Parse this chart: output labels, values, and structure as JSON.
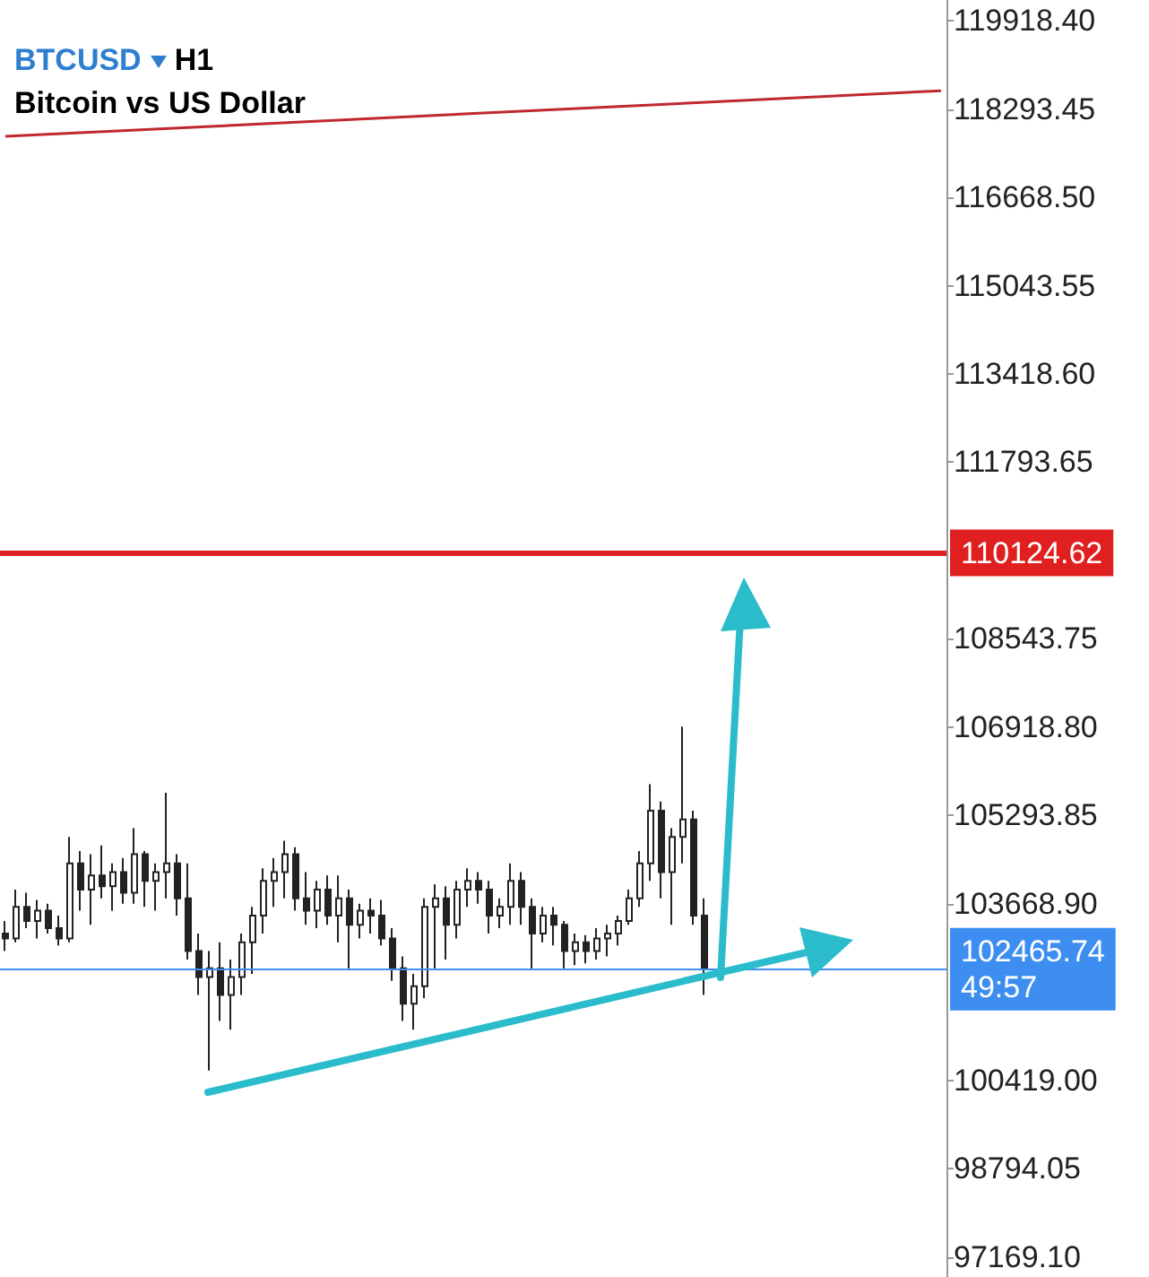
{
  "chart_data": {
    "type": "candlestick",
    "title": "BTCUSD",
    "subtitle": "Bitcoin vs US Dollar",
    "annotations": [
      "H1"
    ],
    "categories": [
      null,
      null,
      null,
      null,
      null,
      null,
      null,
      null,
      null,
      null,
      null,
      null,
      null,
      null,
      null,
      null,
      null,
      null,
      null,
      null,
      null,
      null,
      null,
      null,
      null,
      null,
      null,
      null,
      null,
      null,
      null,
      null,
      null,
      null,
      null,
      null,
      null,
      null,
      null,
      null,
      null,
      null,
      null,
      null,
      null,
      null,
      null,
      null,
      null,
      null,
      null,
      null,
      null,
      null,
      null,
      null,
      null,
      null,
      null,
      null,
      null,
      null,
      null,
      null,
      null,
      null,
      null,
      null,
      null,
      null,
      null,
      null,
      null,
      null,
      null,
      null,
      null,
      null,
      null,
      null,
      null,
      null,
      null,
      null,
      null,
      null,
      null,
      null
    ],
    "color": "#222222",
    "ohlc": [
      [
        103120,
        103350,
        102800,
        103030
      ],
      [
        103030,
        103930,
        102960,
        103610
      ],
      [
        103610,
        103870,
        103220,
        103350
      ],
      [
        103350,
        103740,
        103030,
        103540
      ],
      [
        103540,
        103670,
        103120,
        103220
      ],
      [
        103220,
        103450,
        102900,
        103030
      ],
      [
        103030,
        104900,
        102960,
        104410
      ],
      [
        104410,
        104640,
        103540,
        103930
      ],
      [
        103930,
        104580,
        103280,
        104190
      ],
      [
        104190,
        104740,
        103770,
        103990
      ],
      [
        103990,
        104410,
        103540,
        104250
      ],
      [
        104250,
        104510,
        103670,
        103870
      ],
      [
        103870,
        105060,
        103670,
        104580
      ],
      [
        104580,
        104640,
        103610,
        104090
      ],
      [
        104090,
        104410,
        103540,
        104250
      ],
      [
        104250,
        105710,
        103770,
        104410
      ],
      [
        104410,
        104580,
        103450,
        103770
      ],
      [
        103770,
        104410,
        102640,
        102800
      ],
      [
        102800,
        103120,
        101990,
        102320
      ],
      [
        102320,
        102800,
        100600,
        102480
      ],
      [
        102480,
        102960,
        101510,
        101990
      ],
      [
        101990,
        102640,
        101350,
        102320
      ],
      [
        102320,
        103120,
        101990,
        102960
      ],
      [
        102960,
        103610,
        102380,
        103450
      ],
      [
        103450,
        104320,
        103120,
        104090
      ],
      [
        104090,
        104510,
        103610,
        104250
      ],
      [
        104250,
        104830,
        103770,
        104580
      ],
      [
        104580,
        104710,
        103540,
        103770
      ],
      [
        103770,
        104250,
        103280,
        103540
      ],
      [
        103540,
        104090,
        103220,
        103930
      ],
      [
        103930,
        104190,
        103280,
        103450
      ],
      [
        103450,
        104190,
        102960,
        103770
      ],
      [
        103770,
        103930,
        102480,
        103280
      ],
      [
        103280,
        103670,
        103030,
        103540
      ],
      [
        103540,
        103770,
        103120,
        103450
      ],
      [
        103450,
        103740,
        102900,
        103030
      ],
      [
        103030,
        103220,
        102250,
        102480
      ],
      [
        102480,
        102700,
        101510,
        101830
      ],
      [
        101830,
        102380,
        101350,
        102150
      ],
      [
        102150,
        103770,
        101930,
        103610
      ],
      [
        103610,
        104030,
        102480,
        103770
      ],
      [
        103770,
        103990,
        102640,
        103280
      ],
      [
        103280,
        104090,
        103030,
        103930
      ],
      [
        103930,
        104320,
        103610,
        104090
      ],
      [
        104090,
        104250,
        103670,
        103930
      ],
      [
        103930,
        104090,
        103120,
        103450
      ],
      [
        103450,
        103770,
        103220,
        103610
      ],
      [
        103610,
        104410,
        103280,
        104090
      ],
      [
        104090,
        104250,
        103280,
        103610
      ],
      [
        103610,
        103770,
        102480,
        103120
      ],
      [
        103120,
        103610,
        102960,
        103450
      ],
      [
        103450,
        103610,
        102900,
        103280
      ],
      [
        103280,
        103350,
        102480,
        102800
      ],
      [
        102800,
        103120,
        102540,
        102960
      ],
      [
        102960,
        103090,
        102570,
        102800
      ],
      [
        102800,
        103220,
        102640,
        103030
      ],
      [
        103030,
        103280,
        102700,
        103120
      ],
      [
        103120,
        103450,
        102900,
        103350
      ],
      [
        103350,
        103930,
        103280,
        103770
      ],
      [
        103770,
        104640,
        103610,
        104410
      ],
      [
        104410,
        105870,
        104090,
        105380
      ],
      [
        105380,
        105550,
        103770,
        104250
      ],
      [
        104250,
        105060,
        103280,
        104900
      ],
      [
        104900,
        106930,
        104410,
        105220
      ],
      [
        105220,
        105380,
        103280,
        103450
      ],
      [
        103450,
        103770,
        101990,
        102465.74
      ],
      null,
      null,
      null,
      null,
      null,
      null,
      null,
      null,
      null,
      null,
      null,
      null,
      null,
      null,
      null,
      null,
      null,
      null,
      null,
      null,
      null,
      null
    ],
    "series": [
      {
        "type": "line",
        "color": "#c0282d",
        "values": [
          117790,
          null,
          null,
          null,
          null,
          null,
          null,
          null,
          null,
          null,
          null,
          null,
          null,
          null,
          null,
          null,
          null,
          null,
          null,
          null,
          null,
          null,
          null,
          null,
          null,
          null,
          null,
          null,
          null,
          null,
          null,
          null,
          null,
          null,
          null,
          null,
          null,
          null,
          null,
          null,
          null,
          null,
          null,
          null,
          null,
          null,
          null,
          null,
          null,
          null,
          null,
          null,
          null,
          null,
          null,
          null,
          null,
          null,
          null,
          null,
          null,
          null,
          null,
          null,
          null,
          null,
          null,
          null,
          null,
          null,
          null,
          null,
          null,
          null,
          null,
          null,
          null,
          null,
          null,
          null,
          null,
          null,
          null,
          null,
          null,
          null,
          null,
          118630
        ]
      }
    ],
    "ylim": [
      96800,
      120300
    ],
    "yticks": [
      {
        "value": 97169.1,
        "label": "97169.10"
      },
      {
        "value": 98794.05,
        "label": "98794.05"
      },
      {
        "value": 100419,
        "label": "100419.00"
      },
      {
        "value": 103668.9,
        "label": "103668.90"
      },
      {
        "value": 105293.85,
        "label": "105293.85"
      },
      {
        "value": 106918.8,
        "label": "106918.80"
      },
      {
        "value": 108543.75,
        "label": "108543.75"
      },
      {
        "value": 111793.65,
        "label": "111793.65"
      },
      {
        "value": 113418.6,
        "label": "113418.60"
      },
      {
        "value": 115043.55,
        "label": "115043.55"
      },
      {
        "value": 116668.5,
        "label": "116668.50"
      },
      {
        "value": 118293.45,
        "label": "118293.45"
      },
      {
        "value": 119918.4,
        "label": "119918.40"
      }
    ],
    "ref_lines": [
      {
        "axis": "y",
        "value": 110124.62,
        "label": "110124.62",
        "color": "#e02020"
      },
      {
        "axis": "y",
        "value": 102465.74,
        "label": "102465.74\n49:57",
        "color": "#3d8ef0"
      }
    ]
  }
}
